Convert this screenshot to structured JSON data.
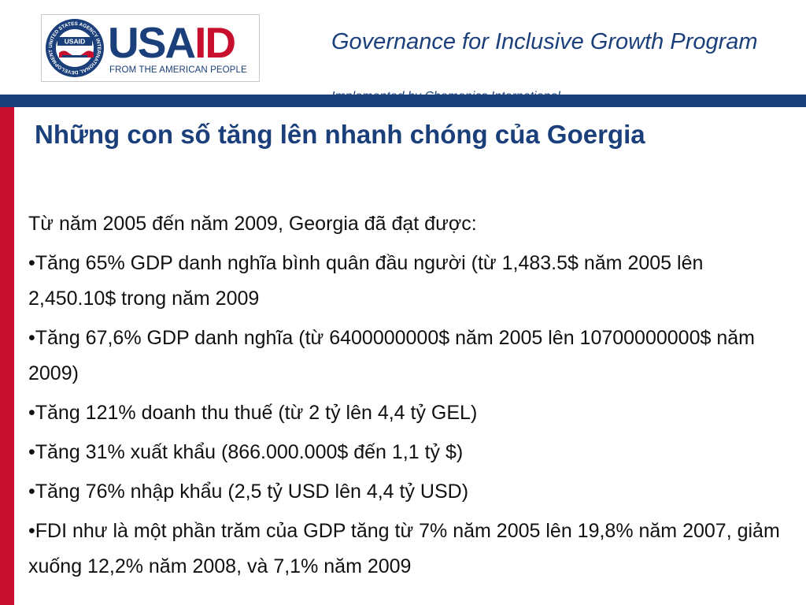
{
  "header": {
    "logo": {
      "word_part1": "USA",
      "word_part2": "ID",
      "tagline": "FROM THE AMERICAN PEOPLE",
      "seal_text": "UNITED STATES AGENCY INTERNATIONAL DEVELOPMENT",
      "seal_usaid": "USAID",
      "colors": {
        "navy": "#1b3f7a",
        "red": "#c8102e"
      }
    },
    "program_title": "Governance for Inclusive Growth Program",
    "program_subtitle": "Implemented by Chemonics International"
  },
  "slide": {
    "title": "Những con số tăng lên nhanh chóng của Goergia",
    "paragraphs": [
      "Từ năm 2005 đến năm 2009, Georgia đã đạt được:",
      "•Tăng 65% GDP danh nghĩa bình quân đầu người (từ 1,483.5$ năm 2005 lên 2,450.10$ trong năm 2009",
      "•Tăng 67,6% GDP danh nghĩa (từ 6400000000$ năm 2005 lên 10700000000$ năm 2009)",
      "•Tăng 121% doanh thu thuế (từ 2 tỷ lên 4,4 tỷ GEL)",
      "•Tăng 31% xuất khẩu (866.000.000$ đến 1,1 tỷ $)",
      "•Tăng 76% nhập khẩu (2,5 tỷ USD lên 4,4 tỷ USD)",
      "•FDI như là một phần trăm của GDP tăng từ 7% năm 2005 lên 19,8% năm 2007, giảm xuống 12,2% năm 2008, và 7,1% năm 2009"
    ]
  },
  "theme": {
    "band_color": "#1b3f7a",
    "side_bar_color": "#c8102e"
  }
}
